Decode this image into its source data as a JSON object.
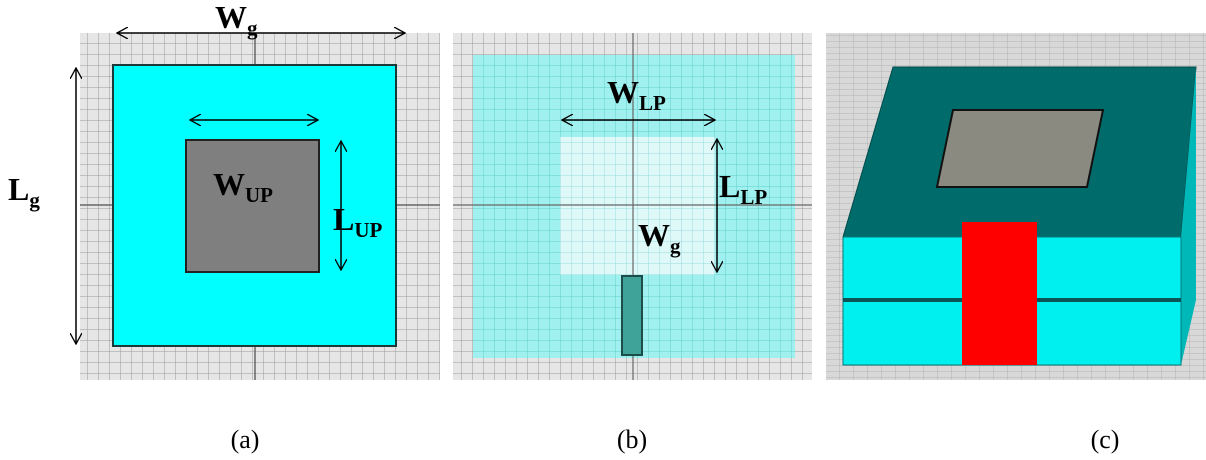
{
  "panel_a": {
    "width_ground": {
      "main": "W",
      "sub": "g"
    },
    "length_ground": {
      "main": "L",
      "sub": "g"
    },
    "width_upper_patch": {
      "main": "W",
      "sub": "UP"
    },
    "length_upper_patch": {
      "main": "L",
      "sub": "UP"
    },
    "caption": "(a)"
  },
  "panel_b": {
    "width_lower_patch": {
      "main": "W",
      "sub": "LP"
    },
    "length_lower_patch": {
      "main": "L",
      "sub": "LP"
    },
    "width_ground": {
      "main": "W",
      "sub": "g"
    },
    "caption": "(b)"
  },
  "panel_c": {
    "caption": "(c)"
  }
}
